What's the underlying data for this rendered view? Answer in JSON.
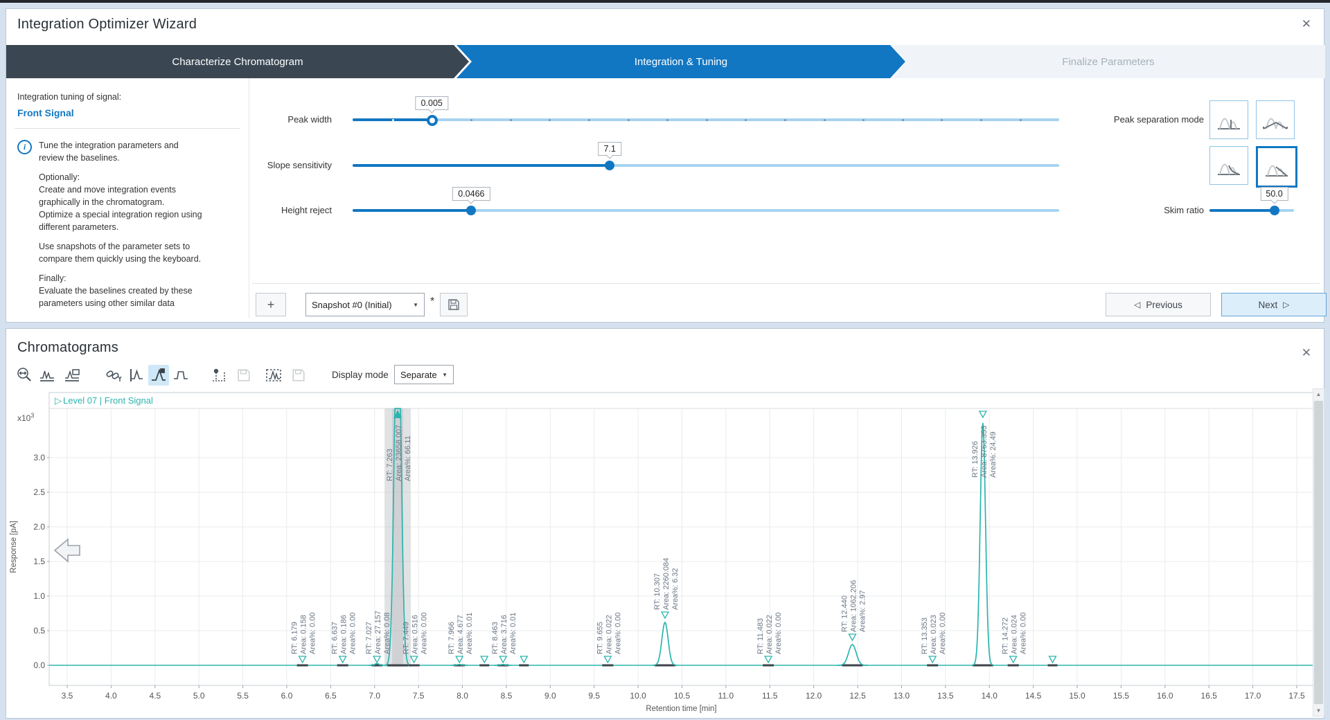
{
  "window": {
    "title": "Integration Optimizer Wizard",
    "close_glyph": "✕"
  },
  "wizard": {
    "steps": [
      {
        "label": "Characterize Chromatogram",
        "state": "done"
      },
      {
        "label": "Integration & Tuning",
        "state": "active"
      },
      {
        "label": "Finalize Parameters",
        "state": "upcoming"
      }
    ],
    "signal": {
      "heading": "Integration tuning of signal:",
      "name": "Front Signal"
    },
    "instruction_lines": [
      "Tune the integration parameters and",
      "review the baselines.",
      "",
      "Optionally:",
      "Create and move integration events",
      "graphically in the chromatogram.",
      "Optimize a special integration region using",
      "different parameters.",
      "",
      "Use snapshots of the parameter sets to",
      "compare them quickly using the keyboard.",
      "",
      "Finally:",
      "Evaluate the baselines created by these",
      "parameters using other similar data"
    ],
    "sliders": {
      "peak_width": {
        "label": "Peak width",
        "value": "0.005",
        "fraction": 0.112,
        "ticks": true
      },
      "slope_sensitivity": {
        "label": "Slope sensitivity",
        "value": "7.1",
        "fraction": 0.364,
        "ticks": false
      },
      "height_reject": {
        "label": "Height reject",
        "value": "0.0466",
        "fraction": 0.168,
        "ticks": false
      },
      "skim_ratio": {
        "label": "Skim ratio",
        "value": "50.0",
        "fraction": 0.767,
        "ticks": false
      }
    },
    "peak_separation": {
      "label": "Peak separation mode",
      "selected_mode": "straight-skim"
    },
    "snapshot": {
      "add": "+",
      "selected": "Snapshot #0 (Initial)",
      "caret": "▼",
      "modified": "*"
    },
    "nav": {
      "prev_glyph": "◁",
      "previous": "Previous",
      "next": "Next",
      "next_glyph": "▷"
    }
  },
  "chromatograms": {
    "title": "Chromatograms",
    "close_glyph": "✕",
    "display_mode": {
      "label": "Display mode",
      "value": "Separate",
      "caret": "▼"
    }
  },
  "chart_data": {
    "type": "line",
    "legend_expander": "▷",
    "legend": "Level 07 | Front Signal",
    "xlabel": "Retention time [min]",
    "ylabel": "Response [pA]",
    "y_multiplier": {
      "base": "x10",
      "exp": "3"
    },
    "xlim": [
      3.5,
      17.5
    ],
    "x_tick_step": 0.5,
    "ylim": [
      0.0,
      3.0
    ],
    "x_ticks": [
      "3.5",
      "4.0",
      "4.5",
      "5.0",
      "5.5",
      "6.0",
      "6.5",
      "7.0",
      "7.5",
      "8.0",
      "8.5",
      "9.0",
      "9.5",
      "10.0",
      "10.5",
      "11.0",
      "11.5",
      "12.0",
      "12.5",
      "13.0",
      "13.5",
      "14.0",
      "14.5",
      "15.0",
      "15.5",
      "16.0",
      "16.5",
      "17.0",
      "17.5"
    ],
    "y_ticks": [
      "3.0",
      "2.5",
      "2.0",
      "1.5",
      "1.0",
      "0.5",
      "0.0"
    ],
    "label_prefixes": {
      "rt": "RT: ",
      "area": "Area: ",
      "pct": "Area%: "
    },
    "baseline_value": 0.0,
    "peaks": [
      {
        "rt": "6.179",
        "area": "0.158",
        "pct": "0.00",
        "height": 0.004
      },
      {
        "rt": "6.637",
        "area": "0.186",
        "pct": "0.00",
        "height": 0.004
      },
      {
        "rt": "7.027",
        "area": "27.157",
        "pct": "0.08",
        "height": 0.025
      },
      {
        "rt": "7.263",
        "area": "23658.007",
        "pct": "66.11",
        "height": 6.0,
        "clipped": true,
        "selected": true
      },
      {
        "rt": "7.449",
        "area": "0.516",
        "pct": "0.00",
        "height": 0.004
      },
      {
        "rt": "7.966",
        "area": "4.677",
        "pct": "0.01",
        "height": 0.012
      },
      {
        "rt": "8.463",
        "area": "3.716",
        "pct": "0.01",
        "height": 0.012
      },
      {
        "rt": "9.655",
        "area": "0.022",
        "pct": "0.00",
        "height": 0.004
      },
      {
        "rt": "10.307",
        "area": "2260.084",
        "pct": "6.32",
        "height": 0.62
      },
      {
        "rt": "11.483",
        "area": "0.022",
        "pct": "0.00",
        "height": 0.004
      },
      {
        "rt": "12.440",
        "area": "1062.206",
        "pct": "2.97",
        "height": 0.3
      },
      {
        "rt": "13.353",
        "area": "0.023",
        "pct": "0.00",
        "height": 0.004
      },
      {
        "rt": "13.926",
        "area": "8763.353",
        "pct": "24.49",
        "height": 3.5
      },
      {
        "rt": "14.272",
        "area": "0.024",
        "pct": "0.00",
        "height": 0.004
      }
    ],
    "unlabeled_marker_rts": [
      8.25,
      8.7,
      14.72
    ]
  },
  "colors": {
    "accent_blue": "#1277c2",
    "signal_teal": "#29b4aa",
    "step_dark": "#3a4753",
    "selection_gray": "#aeb3b8",
    "label_gray": "#6a7685"
  }
}
